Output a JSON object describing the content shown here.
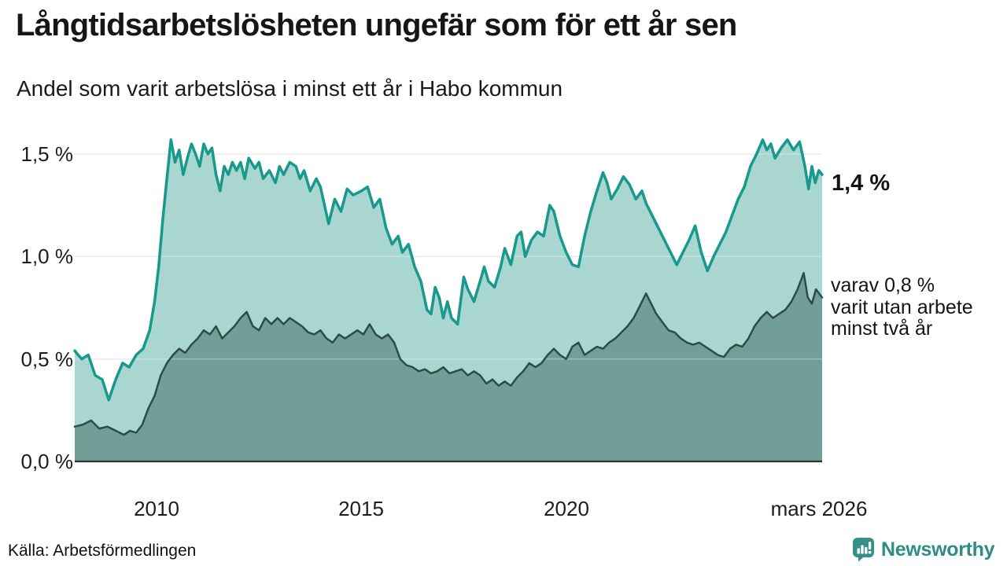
{
  "header": {
    "title": "Långtidsarbetslösheten ungefär som för ett år sen",
    "subtitle": "Andel som varit arbetslösa i minst ett år i Habo kommun"
  },
  "footer": {
    "source": "Källa: Arbetsförmedlingen",
    "brand": "Newsworthy",
    "brand_color": "#2e8c85"
  },
  "chart_data": {
    "type": "area",
    "title": "Långtidsarbetslösheten ungefär som för ett år sen",
    "subtitle": "Andel som varit arbetslösa i minst ett år i Habo kommun",
    "x_range": [
      2008.0,
      2026.25
    ],
    "y_range": [
      0,
      1.5
    ],
    "grid": true,
    "grid_color": "#e3e3e3",
    "baseline_color": "#333333",
    "y_ticks": [
      {
        "label": "1,5 %",
        "value": 1.5
      },
      {
        "label": "1,0 %",
        "value": 1.0
      },
      {
        "label": "0,5 %",
        "value": 0.5
      },
      {
        "label": "0,0 %",
        "value": 0.0
      }
    ],
    "x_ticks": [
      {
        "label": "2010",
        "value": 2010
      },
      {
        "label": "2015",
        "value": 2015
      },
      {
        "label": "2020",
        "value": 2020
      },
      {
        "label": "mars 2026",
        "value": 2026.17
      }
    ],
    "annotations": {
      "upper_end": "1,4 %",
      "lower_lines": [
        "varav 0,8 %",
        "varit utan arbete",
        "minst två år"
      ]
    },
    "series": [
      {
        "name": "arbetslösa minst ett år",
        "line_color": "#17998b",
        "fill_color": "#a9d6d0",
        "line_width": 3.5,
        "end_value": 1.4,
        "points": [
          [
            2008.0,
            0.54
          ],
          [
            2008.17,
            0.5
          ],
          [
            2008.33,
            0.52
          ],
          [
            2008.5,
            0.42
          ],
          [
            2008.67,
            0.4
          ],
          [
            2008.83,
            0.3
          ],
          [
            2009.0,
            0.4
          ],
          [
            2009.17,
            0.48
          ],
          [
            2009.33,
            0.46
          ],
          [
            2009.5,
            0.52
          ],
          [
            2009.67,
            0.55
          ],
          [
            2009.83,
            0.64
          ],
          [
            2009.95,
            0.78
          ],
          [
            2010.05,
            0.95
          ],
          [
            2010.15,
            1.18
          ],
          [
            2010.25,
            1.38
          ],
          [
            2010.35,
            1.57
          ],
          [
            2010.45,
            1.46
          ],
          [
            2010.55,
            1.52
          ],
          [
            2010.65,
            1.4
          ],
          [
            2010.75,
            1.48
          ],
          [
            2010.85,
            1.55
          ],
          [
            2010.95,
            1.5
          ],
          [
            2011.05,
            1.44
          ],
          [
            2011.15,
            1.55
          ],
          [
            2011.25,
            1.5
          ],
          [
            2011.35,
            1.53
          ],
          [
            2011.45,
            1.4
          ],
          [
            2011.55,
            1.32
          ],
          [
            2011.65,
            1.44
          ],
          [
            2011.75,
            1.4
          ],
          [
            2011.85,
            1.46
          ],
          [
            2011.95,
            1.42
          ],
          [
            2012.05,
            1.46
          ],
          [
            2012.15,
            1.38
          ],
          [
            2012.25,
            1.48
          ],
          [
            2012.4,
            1.43
          ],
          [
            2012.5,
            1.46
          ],
          [
            2012.6,
            1.38
          ],
          [
            2012.75,
            1.42
          ],
          [
            2012.9,
            1.36
          ],
          [
            2013.0,
            1.44
          ],
          [
            2013.1,
            1.4
          ],
          [
            2013.25,
            1.46
          ],
          [
            2013.4,
            1.44
          ],
          [
            2013.5,
            1.38
          ],
          [
            2013.6,
            1.42
          ],
          [
            2013.75,
            1.32
          ],
          [
            2013.9,
            1.38
          ],
          [
            2014.0,
            1.34
          ],
          [
            2014.2,
            1.16
          ],
          [
            2014.35,
            1.28
          ],
          [
            2014.5,
            1.22
          ],
          [
            2014.65,
            1.33
          ],
          [
            2014.8,
            1.3
          ],
          [
            2015.0,
            1.32
          ],
          [
            2015.15,
            1.34
          ],
          [
            2015.3,
            1.24
          ],
          [
            2015.45,
            1.28
          ],
          [
            2015.6,
            1.14
          ],
          [
            2015.75,
            1.06
          ],
          [
            2015.9,
            1.1
          ],
          [
            2016.0,
            1.02
          ],
          [
            2016.15,
            1.06
          ],
          [
            2016.3,
            0.95
          ],
          [
            2016.45,
            0.88
          ],
          [
            2016.6,
            0.74
          ],
          [
            2016.7,
            0.72
          ],
          [
            2016.8,
            0.85
          ],
          [
            2016.9,
            0.8
          ],
          [
            2017.0,
            0.7
          ],
          [
            2017.1,
            0.78
          ],
          [
            2017.2,
            0.7
          ],
          [
            2017.35,
            0.67
          ],
          [
            2017.5,
            0.9
          ],
          [
            2017.6,
            0.84
          ],
          [
            2017.75,
            0.78
          ],
          [
            2017.9,
            0.88
          ],
          [
            2018.0,
            0.95
          ],
          [
            2018.1,
            0.88
          ],
          [
            2018.25,
            0.85
          ],
          [
            2018.4,
            0.95
          ],
          [
            2018.5,
            1.04
          ],
          [
            2018.65,
            0.96
          ],
          [
            2018.8,
            1.1
          ],
          [
            2018.9,
            1.12
          ],
          [
            2019.0,
            1.0
          ],
          [
            2019.15,
            1.08
          ],
          [
            2019.3,
            1.12
          ],
          [
            2019.45,
            1.1
          ],
          [
            2019.6,
            1.25
          ],
          [
            2019.7,
            1.22
          ],
          [
            2019.85,
            1.1
          ],
          [
            2020.0,
            1.02
          ],
          [
            2020.15,
            0.96
          ],
          [
            2020.3,
            0.95
          ],
          [
            2020.45,
            1.1
          ],
          [
            2020.6,
            1.22
          ],
          [
            2020.75,
            1.32
          ],
          [
            2020.9,
            1.41
          ],
          [
            2021.0,
            1.36
          ],
          [
            2021.1,
            1.28
          ],
          [
            2021.25,
            1.33
          ],
          [
            2021.4,
            1.39
          ],
          [
            2021.55,
            1.35
          ],
          [
            2021.7,
            1.28
          ],
          [
            2021.85,
            1.32
          ],
          [
            2021.95,
            1.26
          ],
          [
            2022.1,
            1.2
          ],
          [
            2022.25,
            1.14
          ],
          [
            2022.4,
            1.08
          ],
          [
            2022.55,
            1.02
          ],
          [
            2022.7,
            0.96
          ],
          [
            2022.85,
            1.02
          ],
          [
            2023.0,
            1.08
          ],
          [
            2023.15,
            1.15
          ],
          [
            2023.3,
            1.02
          ],
          [
            2023.45,
            0.93
          ],
          [
            2023.6,
            1.0
          ],
          [
            2023.75,
            1.06
          ],
          [
            2023.9,
            1.12
          ],
          [
            2024.05,
            1.2
          ],
          [
            2024.2,
            1.28
          ],
          [
            2024.35,
            1.34
          ],
          [
            2024.5,
            1.44
          ],
          [
            2024.65,
            1.5
          ],
          [
            2024.8,
            1.57
          ],
          [
            2024.9,
            1.52
          ],
          [
            2025.0,
            1.55
          ],
          [
            2025.1,
            1.48
          ],
          [
            2025.25,
            1.53
          ],
          [
            2025.4,
            1.57
          ],
          [
            2025.55,
            1.52
          ],
          [
            2025.7,
            1.56
          ],
          [
            2025.83,
            1.44
          ],
          [
            2025.92,
            1.33
          ],
          [
            2026.0,
            1.44
          ],
          [
            2026.08,
            1.36
          ],
          [
            2026.17,
            1.42
          ],
          [
            2026.25,
            1.4
          ]
        ]
      },
      {
        "name": "varav utan arbete minst två år",
        "line_color": "#2e4b46",
        "fill_color": "#719f98",
        "line_width": 2.5,
        "end_value": 0.8,
        "points": [
          [
            2008.0,
            0.17
          ],
          [
            2008.2,
            0.18
          ],
          [
            2008.4,
            0.2
          ],
          [
            2008.6,
            0.16
          ],
          [
            2008.8,
            0.17
          ],
          [
            2009.0,
            0.15
          ],
          [
            2009.2,
            0.13
          ],
          [
            2009.35,
            0.15
          ],
          [
            2009.5,
            0.14
          ],
          [
            2009.65,
            0.18
          ],
          [
            2009.8,
            0.26
          ],
          [
            2009.95,
            0.32
          ],
          [
            2010.1,
            0.42
          ],
          [
            2010.25,
            0.48
          ],
          [
            2010.4,
            0.52
          ],
          [
            2010.55,
            0.55
          ],
          [
            2010.7,
            0.53
          ],
          [
            2010.85,
            0.57
          ],
          [
            2011.0,
            0.6
          ],
          [
            2011.15,
            0.64
          ],
          [
            2011.3,
            0.62
          ],
          [
            2011.45,
            0.66
          ],
          [
            2011.6,
            0.6
          ],
          [
            2011.75,
            0.63
          ],
          [
            2011.9,
            0.66
          ],
          [
            2012.05,
            0.7
          ],
          [
            2012.2,
            0.73
          ],
          [
            2012.35,
            0.66
          ],
          [
            2012.5,
            0.64
          ],
          [
            2012.65,
            0.7
          ],
          [
            2012.8,
            0.67
          ],
          [
            2012.95,
            0.7
          ],
          [
            2013.1,
            0.67
          ],
          [
            2013.25,
            0.7
          ],
          [
            2013.4,
            0.68
          ],
          [
            2013.55,
            0.66
          ],
          [
            2013.7,
            0.63
          ],
          [
            2013.85,
            0.62
          ],
          [
            2014.0,
            0.64
          ],
          [
            2014.15,
            0.6
          ],
          [
            2014.3,
            0.58
          ],
          [
            2014.45,
            0.62
          ],
          [
            2014.6,
            0.6
          ],
          [
            2014.75,
            0.62
          ],
          [
            2014.9,
            0.64
          ],
          [
            2015.05,
            0.62
          ],
          [
            2015.2,
            0.67
          ],
          [
            2015.35,
            0.62
          ],
          [
            2015.5,
            0.6
          ],
          [
            2015.65,
            0.62
          ],
          [
            2015.8,
            0.58
          ],
          [
            2015.95,
            0.5
          ],
          [
            2016.1,
            0.47
          ],
          [
            2016.25,
            0.46
          ],
          [
            2016.4,
            0.44
          ],
          [
            2016.55,
            0.45
          ],
          [
            2016.7,
            0.43
          ],
          [
            2016.85,
            0.44
          ],
          [
            2017.0,
            0.46
          ],
          [
            2017.15,
            0.43
          ],
          [
            2017.3,
            0.44
          ],
          [
            2017.45,
            0.45
          ],
          [
            2017.6,
            0.42
          ],
          [
            2017.75,
            0.44
          ],
          [
            2017.9,
            0.42
          ],
          [
            2018.05,
            0.38
          ],
          [
            2018.2,
            0.4
          ],
          [
            2018.35,
            0.37
          ],
          [
            2018.5,
            0.39
          ],
          [
            2018.65,
            0.37
          ],
          [
            2018.8,
            0.41
          ],
          [
            2018.95,
            0.44
          ],
          [
            2019.1,
            0.48
          ],
          [
            2019.25,
            0.46
          ],
          [
            2019.4,
            0.48
          ],
          [
            2019.55,
            0.52
          ],
          [
            2019.7,
            0.55
          ],
          [
            2019.85,
            0.52
          ],
          [
            2020.0,
            0.5
          ],
          [
            2020.15,
            0.56
          ],
          [
            2020.3,
            0.58
          ],
          [
            2020.45,
            0.52
          ],
          [
            2020.6,
            0.54
          ],
          [
            2020.75,
            0.56
          ],
          [
            2020.9,
            0.55
          ],
          [
            2021.05,
            0.58
          ],
          [
            2021.2,
            0.6
          ],
          [
            2021.35,
            0.63
          ],
          [
            2021.5,
            0.66
          ],
          [
            2021.65,
            0.7
          ],
          [
            2021.8,
            0.76
          ],
          [
            2021.95,
            0.82
          ],
          [
            2022.05,
            0.78
          ],
          [
            2022.2,
            0.72
          ],
          [
            2022.35,
            0.68
          ],
          [
            2022.5,
            0.64
          ],
          [
            2022.65,
            0.63
          ],
          [
            2022.8,
            0.6
          ],
          [
            2022.95,
            0.58
          ],
          [
            2023.1,
            0.57
          ],
          [
            2023.25,
            0.58
          ],
          [
            2023.4,
            0.56
          ],
          [
            2023.55,
            0.54
          ],
          [
            2023.7,
            0.52
          ],
          [
            2023.85,
            0.51
          ],
          [
            2024.0,
            0.55
          ],
          [
            2024.15,
            0.57
          ],
          [
            2024.3,
            0.56
          ],
          [
            2024.45,
            0.6
          ],
          [
            2024.6,
            0.66
          ],
          [
            2024.75,
            0.7
          ],
          [
            2024.9,
            0.73
          ],
          [
            2025.05,
            0.7
          ],
          [
            2025.2,
            0.72
          ],
          [
            2025.35,
            0.74
          ],
          [
            2025.5,
            0.78
          ],
          [
            2025.65,
            0.84
          ],
          [
            2025.8,
            0.92
          ],
          [
            2025.9,
            0.8
          ],
          [
            2026.0,
            0.77
          ],
          [
            2026.1,
            0.84
          ],
          [
            2026.25,
            0.8
          ]
        ]
      }
    ]
  }
}
